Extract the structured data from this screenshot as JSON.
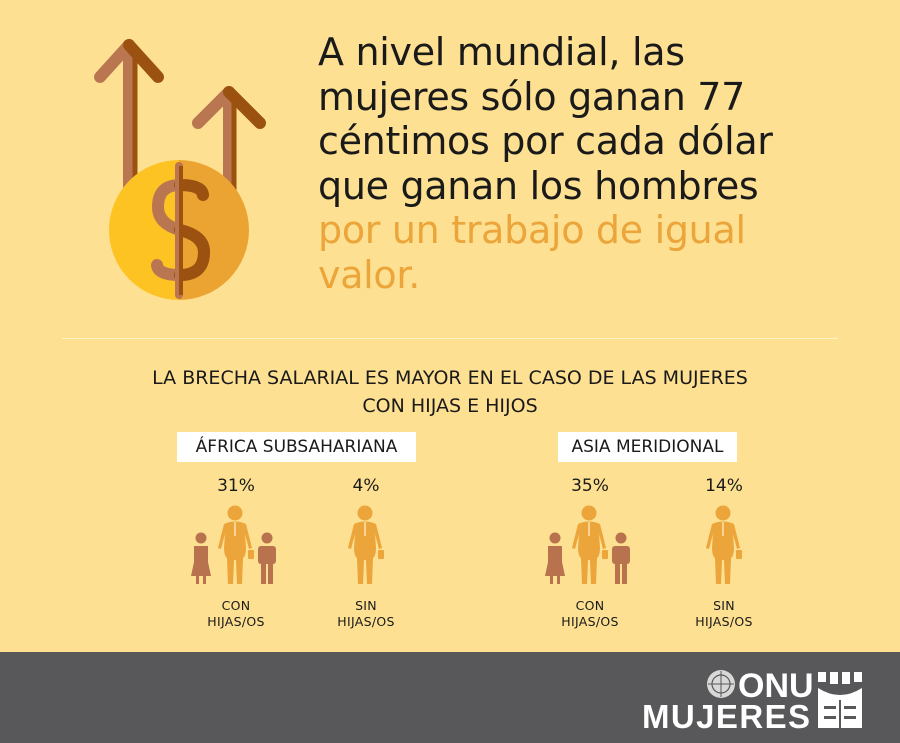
{
  "headline": {
    "lines": [
      "A nivel mundial, las",
      "mujeres sólo ganan 77",
      "céntimos por cada dólar",
      "que ganan los hombres"
    ],
    "accent_lines": [
      "por un trabajo de igual",
      "valor."
    ]
  },
  "subtitle": {
    "lines": [
      "LA BRECHA SALARIAL ES MAYOR EN EL CASO DE LAS MUJERES",
      "CON HIJAS E HIJOS"
    ]
  },
  "regions": [
    {
      "name": "ÁFRICA SUBSAHARIANA",
      "with_children": {
        "pct": "31%",
        "label": [
          "CON",
          "HIJAS/OS"
        ]
      },
      "without_children": {
        "pct": "4%",
        "label": [
          "SIN",
          "HIJAS/OS"
        ]
      }
    },
    {
      "name": "ASIA MERIDIONAL",
      "with_children": {
        "pct": "35%",
        "label": [
          "CON",
          "HIJAS/OS"
        ]
      },
      "without_children": {
        "pct": "14%",
        "label": [
          "SIN",
          "HIJAS/OS"
        ]
      }
    }
  ],
  "logo": {
    "line1": "ONU",
    "line2": "MUJERES"
  },
  "colors": {
    "background": "#fde091",
    "accent": "#eba53a",
    "woman": "#eba53a",
    "child": "#b8724e",
    "footer": "#58585a"
  },
  "icons": [
    "arrows-up-icon",
    "dollar-coin-icon",
    "woman-icon",
    "child-icon",
    "un-emblem-icon"
  ]
}
